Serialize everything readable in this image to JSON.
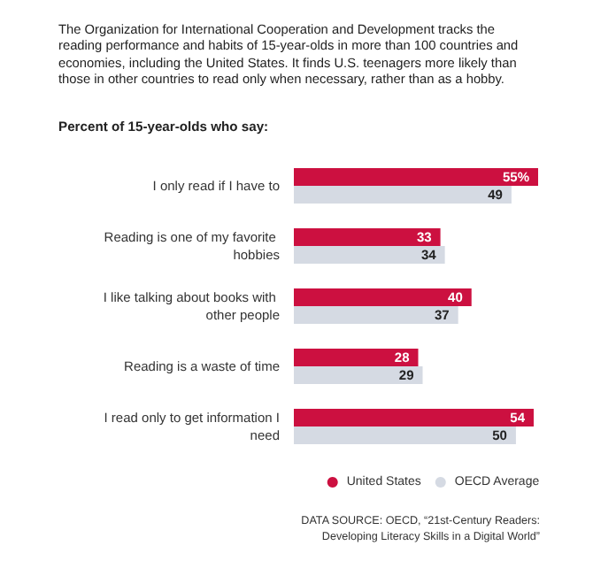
{
  "chart_data": {
    "type": "bar",
    "orientation": "horizontal",
    "subtitle": "The Organization for International Cooperation and Development tracks the reading performance and habits of 15-year-olds in more than 100 countries and economies, including the United States. It finds U.S. teenagers more likely than those in other countries to read only when necessary, rather than as a hobby.",
    "title": "Percent of 15-year-olds who say:",
    "categories": [
      "I only read if I have to",
      "Reading is one of my favorite hobbies",
      "I like talking about books with other people",
      "Reading is a waste of time",
      "I read only to get information I need"
    ],
    "series": [
      {
        "name": "United States",
        "color": "#cc1040",
        "values": [
          55,
          33,
          40,
          28,
          54
        ],
        "value_labels": [
          "55%",
          "33",
          "40",
          "28",
          "54"
        ]
      },
      {
        "name": "OECD Average",
        "color": "#d5dae3",
        "values": [
          49,
          34,
          37,
          29,
          50
        ],
        "value_labels": [
          "49",
          "34",
          "37",
          "29",
          "50"
        ]
      }
    ],
    "legend": "bottom right",
    "annotations": [
      "DATA SOURCE: OECD, “21st-Century Readers: Developing Literacy Skills in a Digital World”"
    ]
  }
}
